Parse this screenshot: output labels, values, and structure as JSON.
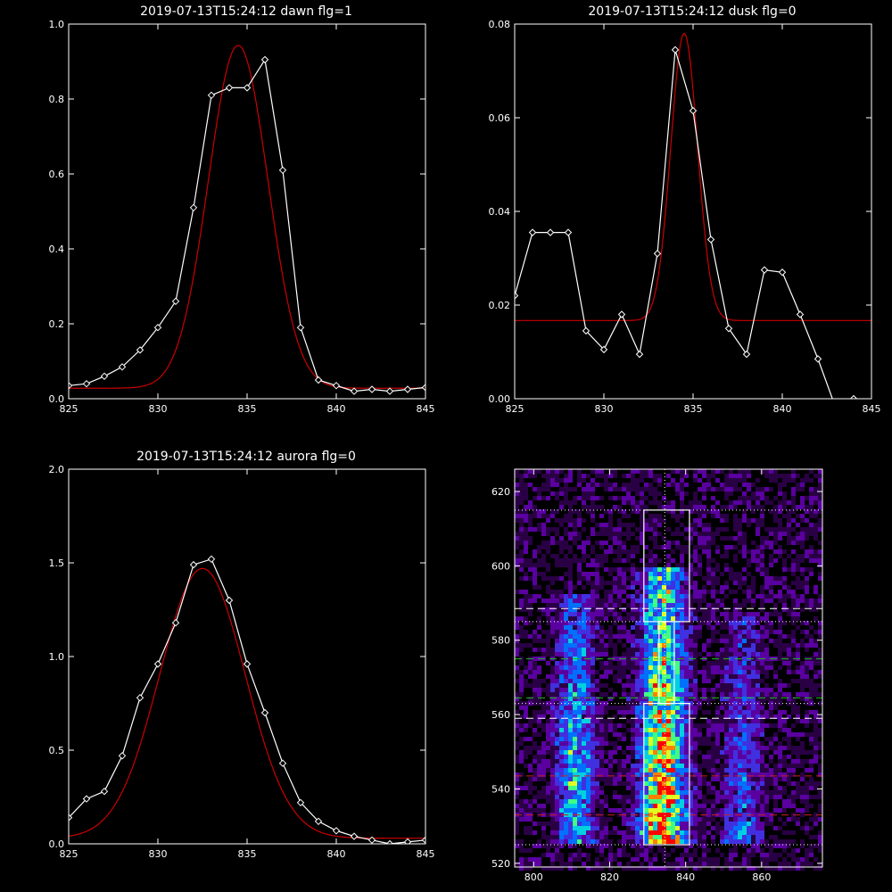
{
  "colors": {
    "background": "#000000",
    "axes": "#ffffff",
    "data_line": "#ffffff",
    "fit_line": "#cc0000",
    "box": "#ffffff",
    "green_dash": "#22bb22",
    "red_dash": "#cc2222",
    "white_dash": "#ffffff",
    "dotted": "#ffffff"
  },
  "chart_data": [
    {
      "type": "line",
      "title": "2019-07-13T15:24:12 dawn flg=1",
      "xlabel": "",
      "ylabel": "",
      "xlim": [
        825,
        845
      ],
      "ylim": [
        0,
        1.0
      ],
      "xticks": [
        "825",
        "830",
        "835",
        "840",
        "845"
      ],
      "yticks": [
        "0.0",
        "0.2",
        "0.4",
        "0.6",
        "0.8",
        "1.0"
      ],
      "x": [
        825,
        826,
        827,
        828,
        829,
        830,
        831,
        832,
        833,
        834,
        835,
        836,
        837,
        838,
        839,
        840,
        841,
        842,
        843,
        844,
        845
      ],
      "series": [
        {
          "role": "data",
          "marker": "diamond",
          "values": [
            0.035,
            0.04,
            0.06,
            0.085,
            0.13,
            0.19,
            0.26,
            0.51,
            0.81,
            0.83,
            0.83,
            0.905,
            0.61,
            0.19,
            0.05,
            0.035,
            0.02,
            0.025,
            0.02,
            0.025,
            0.03
          ]
        },
        {
          "role": "fit",
          "curve": "gaussian",
          "amplitude": 0.915,
          "center": 834.5,
          "sigma": 1.67,
          "baseline": 0.028,
          "baseline_slope": 0
        }
      ]
    },
    {
      "type": "line",
      "title": "2019-07-13T15:24:12 dusk flg=0",
      "xlabel": "",
      "ylabel": "",
      "xlim": [
        825,
        845
      ],
      "ylim": [
        0,
        0.08
      ],
      "xticks": [
        "825",
        "830",
        "835",
        "840",
        "845"
      ],
      "yticks": [
        "0.00",
        "0.02",
        "0.04",
        "0.06",
        "0.08"
      ],
      "x": [
        825,
        826,
        827,
        828,
        829,
        830,
        831,
        832,
        833,
        834,
        835,
        836,
        837,
        838,
        839,
        840,
        841,
        842,
        843,
        844,
        845
      ],
      "series": [
        {
          "role": "data",
          "marker": "diamond",
          "values": [
            0.022,
            0.0355,
            0.0355,
            0.0355,
            0.0145,
            0.0105,
            0.018,
            0.0095,
            0.031,
            0.0745,
            0.0615,
            0.034,
            0.015,
            0.0095,
            0.0275,
            0.027,
            0.018,
            0.0085,
            -0.002,
            0.0,
            -0.001
          ]
        },
        {
          "role": "fit",
          "curve": "gaussian",
          "amplitude": 0.0613,
          "center": 834.5,
          "sigma": 0.75,
          "baseline": 0.0167,
          "baseline_slope": 0
        }
      ]
    },
    {
      "type": "line",
      "title": "2019-07-13T15:24:12 aurora flg=0",
      "xlabel": "",
      "ylabel": "",
      "xlim": [
        825,
        845
      ],
      "ylim": [
        0,
        2.0
      ],
      "xticks": [
        "825",
        "830",
        "835",
        "840",
        "845"
      ],
      "yticks": [
        "0.0",
        "0.5",
        "1.0",
        "1.5",
        "2.0"
      ],
      "x": [
        825,
        826,
        827,
        828,
        829,
        830,
        831,
        832,
        833,
        834,
        835,
        836,
        837,
        838,
        839,
        840,
        841,
        842,
        843,
        844,
        845
      ],
      "series": [
        {
          "role": "data",
          "marker": "diamond",
          "values": [
            0.14,
            0.24,
            0.28,
            0.47,
            0.78,
            0.96,
            1.18,
            1.49,
            1.52,
            1.3,
            0.96,
            0.7,
            0.43,
            0.22,
            0.12,
            0.07,
            0.04,
            0.02,
            0.0,
            0.01,
            0.02
          ]
        },
        {
          "role": "fit",
          "curve": "gaussian",
          "amplitude": 1.44,
          "center": 832.5,
          "sigma": 2.4,
          "baseline": 0.03,
          "baseline_slope": 0
        }
      ]
    },
    {
      "type": "heatmap",
      "title": "",
      "xlabel": "",
      "ylabel": "",
      "xlim": [
        795,
        876
      ],
      "ylim": [
        519,
        626
      ],
      "xticks": [
        "800",
        "820",
        "840",
        "860"
      ],
      "yticks": [
        "520",
        "540",
        "560",
        "580",
        "600",
        "620"
      ],
      "colormap": [
        "#000000",
        "#2a0045",
        "#5a00a0",
        "#4030e0",
        "#0070ff",
        "#00d0e0",
        "#40ff80",
        "#e0ff20",
        "#ff8000",
        "#ff0000"
      ],
      "bands": [
        {
          "center_x": 811,
          "width": 3.5,
          "rows": [
            525,
            592
          ],
          "strength": 0.55
        },
        {
          "center_x": 834,
          "width": 4.0,
          "rows": [
            525,
            600
          ],
          "strength": 1.0
        },
        {
          "center_x": 855,
          "width": 3.5,
          "rows": [
            525,
            588
          ],
          "strength": 0.35
        }
      ],
      "boxes": [
        {
          "x": [
            829,
            841
          ],
          "y": [
            525,
            563
          ]
        },
        {
          "x": [
            829,
            841
          ],
          "y": [
            585,
            615
          ]
        },
        {
          "x": [
            833,
            837
          ],
          "y": [
            563,
            585
          ]
        }
      ],
      "hlines": [
        {
          "y": 615,
          "style": "dotted",
          "color": "#ffffff"
        },
        {
          "y": 588.5,
          "style": "dashed",
          "color": "#ffffff"
        },
        {
          "y": 585,
          "style": "dotted",
          "color": "#ffffff"
        },
        {
          "y": 575,
          "style": "dashed",
          "color": "#22bb22"
        },
        {
          "y": 564.5,
          "style": "dashed",
          "color": "#22bb22"
        },
        {
          "y": 563,
          "style": "dotted",
          "color": "#ffffff"
        },
        {
          "y": 559,
          "style": "dashed",
          "color": "#ffffff"
        },
        {
          "y": 543.5,
          "style": "dashed",
          "color": "#cc2222"
        },
        {
          "y": 533,
          "style": "dashed",
          "color": "#cc2222"
        },
        {
          "y": 525,
          "style": "dotted",
          "color": "#ffffff"
        }
      ],
      "vlines": [
        {
          "x": 834.5,
          "style": "dotted",
          "color": "#ffffff"
        }
      ]
    }
  ]
}
